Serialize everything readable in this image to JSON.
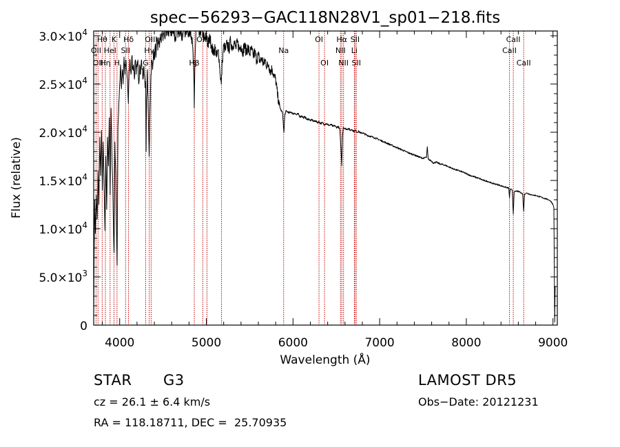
{
  "chart_data": {
    "type": "line",
    "title": "spec−56293−GAC118N28V1_sp01−218.fits",
    "xlabel": "Wavelength (Å)",
    "ylabel": "Flux (relative)",
    "xlim": [
      3700,
      9050
    ],
    "ylim": [
      0,
      30500
    ],
    "xticks": [
      {
        "value": 4000,
        "label": "4000"
      },
      {
        "value": 5000,
        "label": "5000"
      },
      {
        "value": 6000,
        "label": "6000"
      },
      {
        "value": 7000,
        "label": "7000"
      },
      {
        "value": 8000,
        "label": "8000"
      },
      {
        "value": 9000,
        "label": "9000"
      }
    ],
    "yticks": [
      {
        "value": 0,
        "mant": "0",
        "exp": ""
      },
      {
        "value": 5000,
        "mant": "5.0×10",
        "exp": "3"
      },
      {
        "value": 10000,
        "mant": "1.0×10",
        "exp": "4"
      },
      {
        "value": 15000,
        "mant": "1.5×10",
        "exp": "4"
      },
      {
        "value": 20000,
        "mant": "2.0×10",
        "exp": "4"
      },
      {
        "value": 25000,
        "mant": "2.5×10",
        "exp": "4"
      },
      {
        "value": 30000,
        "mant": "3.0×10",
        "exp": "4"
      }
    ],
    "line_color": "#000000",
    "marker_color": "#c00000",
    "spectrum": [
      [
        3700,
        1000
      ],
      [
        3705,
        7000
      ],
      [
        3712,
        13000
      ],
      [
        3720,
        9500
      ],
      [
        3730,
        13500
      ],
      [
        3740,
        11000
      ],
      [
        3750,
        16000
      ],
      [
        3760,
        12500
      ],
      [
        3770,
        19500
      ],
      [
        3780,
        15500
      ],
      [
        3790,
        20200
      ],
      [
        3800,
        14000
      ],
      [
        3810,
        19000
      ],
      [
        3820,
        14500
      ],
      [
        3830,
        9800
      ],
      [
        3840,
        17500
      ],
      [
        3850,
        12000
      ],
      [
        3860,
        19500
      ],
      [
        3870,
        16500
      ],
      [
        3880,
        21500
      ],
      [
        3890,
        13500
      ],
      [
        3900,
        22500
      ],
      [
        3910,
        18000
      ],
      [
        3920,
        14500
      ],
      [
        3930,
        9200
      ],
      [
        3935,
        7500
      ],
      [
        3945,
        19000
      ],
      [
        3955,
        15500
      ],
      [
        3963,
        10000
      ],
      [
        3970,
        6200
      ],
      [
        3980,
        20500
      ],
      [
        3990,
        23000
      ],
      [
        4000,
        25000
      ],
      [
        4010,
        27000
      ],
      [
        4020,
        24500
      ],
      [
        4030,
        26500
      ],
      [
        4040,
        25000
      ],
      [
        4050,
        27800
      ],
      [
        4060,
        26000
      ],
      [
        4070,
        27500
      ],
      [
        4080,
        26500
      ],
      [
        4090,
        25500
      ],
      [
        4100,
        23000
      ],
      [
        4110,
        26500
      ],
      [
        4120,
        27500
      ],
      [
        4130,
        26000
      ],
      [
        4140,
        27800
      ],
      [
        4150,
        26500
      ],
      [
        4160,
        27000
      ],
      [
        4170,
        25500
      ],
      [
        4180,
        27500
      ],
      [
        4190,
        26000
      ],
      [
        4200,
        26800
      ],
      [
        4210,
        27500
      ],
      [
        4220,
        25000
      ],
      [
        4230,
        27000
      ],
      [
        4240,
        26000
      ],
      [
        4250,
        27500
      ],
      [
        4260,
        26500
      ],
      [
        4270,
        25500
      ],
      [
        4280,
        26800
      ],
      [
        4290,
        25500
      ],
      [
        4300,
        24500
      ],
      [
        4305,
        18000
      ],
      [
        4310,
        23500
      ],
      [
        4320,
        26500
      ],
      [
        4330,
        21500
      ],
      [
        4340,
        17500
      ],
      [
        4350,
        22500
      ],
      [
        4360,
        26000
      ],
      [
        4370,
        27500
      ],
      [
        4380,
        26500
      ],
      [
        4390,
        28500
      ],
      [
        4400,
        27500
      ],
      [
        4410,
        29000
      ],
      [
        4420,
        28000
      ],
      [
        4430,
        29500
      ],
      [
        4440,
        28500
      ],
      [
        4450,
        29800
      ],
      [
        4460,
        28800
      ],
      [
        4470,
        30200
      ],
      [
        4480,
        29300
      ],
      [
        4490,
        30500
      ],
      [
        4500,
        29500
      ],
      [
        4510,
        30800
      ],
      [
        4520,
        29800
      ],
      [
        4530,
        30600
      ],
      [
        4540,
        30000
      ],
      [
        4550,
        31000
      ],
      [
        4560,
        30200
      ],
      [
        4580,
        31000
      ],
      [
        4600,
        30000
      ],
      [
        4620,
        31000
      ],
      [
        4640,
        29500
      ],
      [
        4660,
        30800
      ],
      [
        4680,
        30200
      ],
      [
        4700,
        31000
      ],
      [
        4720,
        29800
      ],
      [
        4740,
        30800
      ],
      [
        4760,
        30300
      ],
      [
        4780,
        31000
      ],
      [
        4800,
        30000
      ],
      [
        4820,
        30800
      ],
      [
        4840,
        29000
      ],
      [
        4855,
        26000
      ],
      [
        4861,
        22500
      ],
      [
        4868,
        27000
      ],
      [
        4880,
        30500
      ],
      [
        4900,
        31000
      ],
      [
        4920,
        30000
      ],
      [
        4940,
        30800
      ],
      [
        4960,
        30200
      ],
      [
        4980,
        29500
      ],
      [
        5000,
        30000
      ],
      [
        5020,
        29000
      ],
      [
        5040,
        29800
      ],
      [
        5060,
        29000
      ],
      [
        5080,
        28200
      ],
      [
        5100,
        28800
      ],
      [
        5120,
        27800
      ],
      [
        5140,
        28500
      ],
      [
        5160,
        26000
      ],
      [
        5172,
        25000
      ],
      [
        5185,
        27500
      ],
      [
        5200,
        29000
      ],
      [
        5220,
        28500
      ],
      [
        5240,
        29200
      ],
      [
        5260,
        28600
      ],
      [
        5280,
        29500
      ],
      [
        5300,
        28800
      ],
      [
        5320,
        29400
      ],
      [
        5340,
        28700
      ],
      [
        5360,
        29300
      ],
      [
        5380,
        28600
      ],
      [
        5400,
        29000
      ],
      [
        5420,
        28300
      ],
      [
        5440,
        29000
      ],
      [
        5460,
        28400
      ],
      [
        5480,
        28800
      ],
      [
        5500,
        28100
      ],
      [
        5520,
        28600
      ],
      [
        5540,
        27900
      ],
      [
        5560,
        28300
      ],
      [
        5580,
        27500
      ],
      [
        5600,
        28000
      ],
      [
        5620,
        27300
      ],
      [
        5640,
        27700
      ],
      [
        5660,
        27000
      ],
      [
        5680,
        27500
      ],
      [
        5700,
        26800
      ],
      [
        5720,
        27000
      ],
      [
        5740,
        26300
      ],
      [
        5760,
        26600
      ],
      [
        5780,
        25800
      ],
      [
        5800,
        25500
      ],
      [
        5820,
        24000
      ],
      [
        5840,
        22800
      ],
      [
        5860,
        22300
      ],
      [
        5880,
        22000
      ],
      [
        5890,
        20500
      ],
      [
        5896,
        20000
      ],
      [
        5905,
        21800
      ],
      [
        5920,
        22200
      ],
      [
        5940,
        22100
      ],
      [
        5960,
        22000
      ],
      [
        5980,
        22100
      ],
      [
        6000,
        21900
      ],
      [
        6020,
        22000
      ],
      [
        6040,
        21800
      ],
      [
        6060,
        21900
      ],
      [
        6080,
        21600
      ],
      [
        6100,
        21700
      ],
      [
        6120,
        21500
      ],
      [
        6140,
        21600
      ],
      [
        6160,
        21300
      ],
      [
        6180,
        21400
      ],
      [
        6200,
        21200
      ],
      [
        6220,
        21300
      ],
      [
        6240,
        21100
      ],
      [
        6260,
        21200
      ],
      [
        6280,
        21000
      ],
      [
        6300,
        21100
      ],
      [
        6320,
        20900
      ],
      [
        6340,
        21000
      ],
      [
        6360,
        20800
      ],
      [
        6380,
        20900
      ],
      [
        6400,
        20800
      ],
      [
        6420,
        20700
      ],
      [
        6440,
        20800
      ],
      [
        6460,
        20600
      ],
      [
        6480,
        20700
      ],
      [
        6500,
        20500
      ],
      [
        6520,
        20600
      ],
      [
        6540,
        20300
      ],
      [
        6555,
        18000
      ],
      [
        6563,
        16500
      ],
      [
        6570,
        19500
      ],
      [
        6580,
        20500
      ],
      [
        6600,
        20400
      ],
      [
        6620,
        20300
      ],
      [
        6640,
        20400
      ],
      [
        6660,
        20200
      ],
      [
        6680,
        20300
      ],
      [
        6700,
        20100
      ],
      [
        6720,
        20200
      ],
      [
        6740,
        20000
      ],
      [
        6760,
        20100
      ],
      [
        6780,
        19900
      ],
      [
        6800,
        19950
      ],
      [
        6850,
        19700
      ],
      [
        6900,
        19550
      ],
      [
        6950,
        19400
      ],
      [
        7000,
        19200
      ],
      [
        7050,
        19000
      ],
      [
        7100,
        18800
      ],
      [
        7150,
        18600
      ],
      [
        7200,
        18400
      ],
      [
        7250,
        18200
      ],
      [
        7300,
        18000
      ],
      [
        7350,
        17800
      ],
      [
        7400,
        17650
      ],
      [
        7450,
        17450
      ],
      [
        7500,
        17300
      ],
      [
        7540,
        17400
      ],
      [
        7550,
        18500
      ],
      [
        7560,
        17200
      ],
      [
        7600,
        17000
      ],
      [
        7620,
        16800
      ],
      [
        7650,
        16900
      ],
      [
        7700,
        16700
      ],
      [
        7750,
        16600
      ],
      [
        7800,
        16400
      ],
      [
        7850,
        16200
      ],
      [
        7900,
        16050
      ],
      [
        7950,
        15900
      ],
      [
        8000,
        15700
      ],
      [
        8050,
        15500
      ],
      [
        8100,
        15350
      ],
      [
        8150,
        15200
      ],
      [
        8200,
        15000
      ],
      [
        8250,
        14900
      ],
      [
        8300,
        14700
      ],
      [
        8350,
        14600
      ],
      [
        8400,
        14450
      ],
      [
        8450,
        14300
      ],
      [
        8490,
        14200
      ],
      [
        8498,
        13200
      ],
      [
        8506,
        14100
      ],
      [
        8530,
        14000
      ],
      [
        8542,
        11500
      ],
      [
        8552,
        13800
      ],
      [
        8580,
        13900
      ],
      [
        8620,
        13800
      ],
      [
        8650,
        13600
      ],
      [
        8662,
        11800
      ],
      [
        8672,
        13600
      ],
      [
        8700,
        13700
      ],
      [
        8750,
        13500
      ],
      [
        8800,
        13450
      ],
      [
        8850,
        13300
      ],
      [
        8900,
        13150
      ],
      [
        8950,
        13000
      ],
      [
        8980,
        12800
      ],
      [
        9000,
        12500
      ],
      [
        9010,
        12200
      ],
      [
        9020,
        300
      ],
      [
        9025,
        4000
      ]
    ],
    "lines": [
      {
        "w": 3727,
        "label": "OII",
        "row": 1
      },
      {
        "w": 3750,
        "label": "OII",
        "row": 2
      },
      {
        "w": 3798,
        "label": "Hθ",
        "row": 0
      },
      {
        "w": 3835,
        "label": "Hη",
        "row": 2
      },
      {
        "w": 3889,
        "label": "HeI",
        "row": 1
      },
      {
        "w": 3934,
        "label": "K",
        "row": 0
      },
      {
        "w": 3969,
        "label": "H",
        "row": 2
      },
      {
        "w": 4068,
        "label": "SII",
        "row": 1
      },
      {
        "w": 4102,
        "label": "Hδ",
        "row": 0
      },
      {
        "w": 4300,
        "label": "G",
        "row": 2
      },
      {
        "w": 4341,
        "label": "Hγ",
        "row": 1
      },
      {
        "w": 4363,
        "label": "OIII",
        "row": 0
      },
      {
        "w": 4861,
        "label": "Hβ",
        "row": 2
      },
      {
        "w": 4959,
        "label": "OIII",
        "row": 0
      },
      {
        "w": 5007,
        "label": "",
        "row": 0
      },
      {
        "w": 5175,
        "label": "",
        "row": 0
      },
      {
        "w": 5892,
        "label": "Na",
        "row": 1
      },
      {
        "w": 6300,
        "label": "OI",
        "row": 0
      },
      {
        "w": 6364,
        "label": "OI",
        "row": 2
      },
      {
        "w": 6548,
        "label": "NII",
        "row": 1
      },
      {
        "w": 6563,
        "label": "Hα",
        "row": 0
      },
      {
        "w": 6583,
        "label": "NII",
        "row": 2
      },
      {
        "w": 6708,
        "label": "Li",
        "row": 1
      },
      {
        "w": 6716,
        "label": "SII",
        "row": 0
      },
      {
        "w": 6731,
        "label": "SII",
        "row": 2
      },
      {
        "w": 8498,
        "label": "CaII",
        "row": 1
      },
      {
        "w": 8542,
        "label": "CaII",
        "row": 0
      },
      {
        "w": 8662,
        "label": "CaII",
        "row": 2
      }
    ]
  },
  "info": {
    "class_label": "STAR",
    "subclass": "G3",
    "survey": "LAMOST DR5",
    "cz_label": "cz = 26.1 ± 6.4 km/s",
    "obs_date": "Obs−Date: 20121231",
    "coords": "RA = 118.18711, DEC =  25.70935"
  }
}
